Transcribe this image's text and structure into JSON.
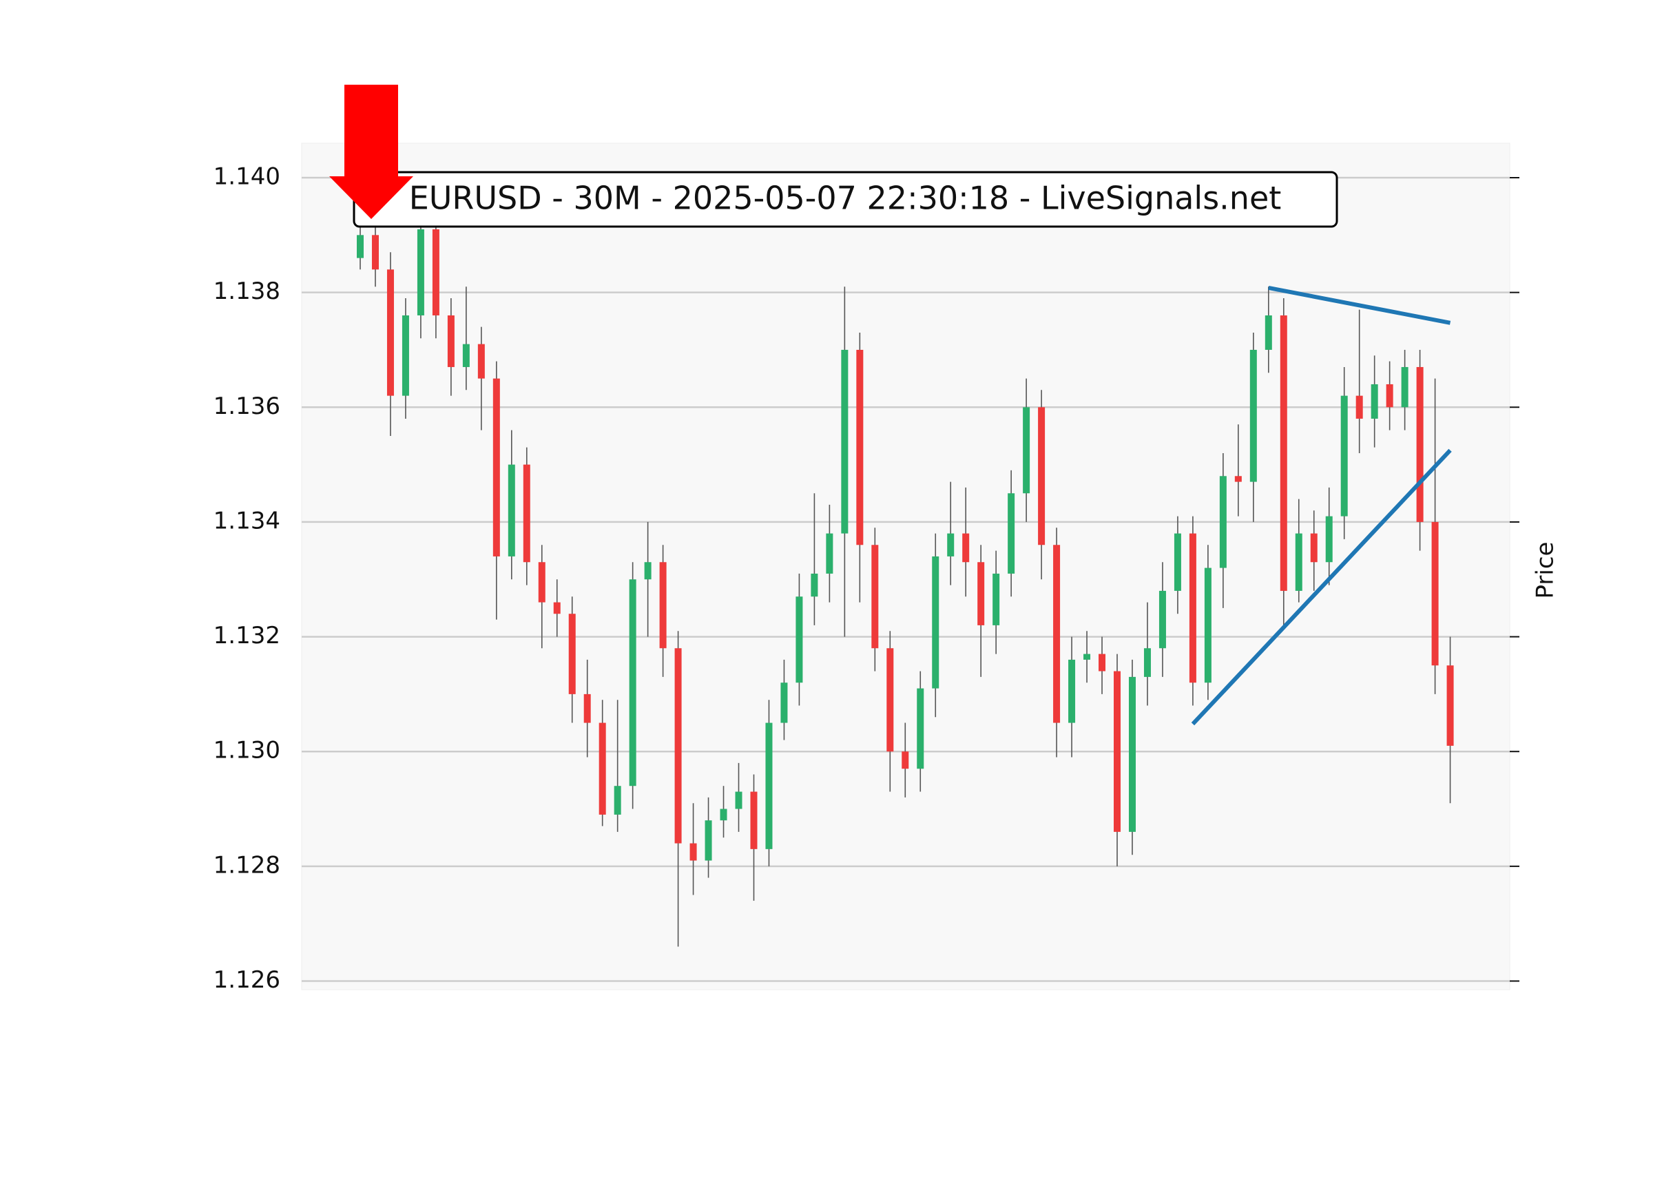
{
  "chart_data": {
    "type": "candlestick",
    "title": "EURUSD - 30M - 2025-05-07 22:30:18 - LiveSignals.net",
    "y_label": "Price",
    "ylim": [
      1.12585,
      1.1406
    ],
    "yticks": [
      1.126,
      1.128,
      {
        "value": 1.13,
        "label": "1.130"
      },
      1.132,
      1.134,
      1.136,
      1.138,
      {
        "value": 1.14,
        "label": "1.140"
      }
    ],
    "grid": true,
    "up_color": "#2bb06c",
    "down_color": "#ee3a3a",
    "wick_color": "#555555",
    "open": [
      1.1386,
      1.139,
      1.1384,
      1.1362,
      1.1376,
      1.1391,
      1.1376,
      1.1367,
      1.1371,
      1.1365,
      1.1334,
      1.135,
      1.1333,
      1.1326,
      1.1324,
      1.131,
      1.1305,
      1.1289,
      1.1294,
      1.133,
      1.1333,
      1.1318,
      1.1284,
      1.1281,
      1.1288,
      1.129,
      1.1293,
      1.1283,
      1.1305,
      1.1312,
      1.1327,
      1.1331,
      1.1338,
      1.137,
      1.1336,
      1.1318,
      1.13,
      1.1297,
      1.1311,
      1.1334,
      1.1338,
      1.1333,
      1.1322,
      1.1331,
      1.1345,
      1.136,
      1.1336,
      1.1305,
      1.1316,
      1.1317,
      1.1314,
      1.1286,
      1.1313,
      1.1318,
      1.1328,
      1.1338,
      1.1312,
      1.1332,
      1.1348,
      1.1347,
      1.137,
      1.1376,
      1.1328,
      1.1338,
      1.1333,
      1.1341,
      1.1362,
      1.1358,
      1.1364,
      1.136,
      1.1367,
      1.134,
      1.1315
    ],
    "high": [
      1.1395,
      1.1393,
      1.1387,
      1.1379,
      1.1394,
      1.1394,
      1.1379,
      1.1381,
      1.1374,
      1.1368,
      1.1356,
      1.1353,
      1.1336,
      1.133,
      1.1327,
      1.1316,
      1.1309,
      1.1309,
      1.1333,
      1.134,
      1.1336,
      1.1321,
      1.1291,
      1.1292,
      1.1294,
      1.1298,
      1.1296,
      1.1309,
      1.1316,
      1.1331,
      1.1345,
      1.1343,
      1.1381,
      1.1373,
      1.1339,
      1.1321,
      1.1305,
      1.1314,
      1.1338,
      1.1347,
      1.1346,
      1.1336,
      1.1335,
      1.1349,
      1.1365,
      1.1363,
      1.1339,
      1.132,
      1.1321,
      1.132,
      1.1317,
      1.1316,
      1.1326,
      1.1333,
      1.1341,
      1.1341,
      1.1336,
      1.1352,
      1.1357,
      1.1373,
      1.1381,
      1.1379,
      1.1344,
      1.1342,
      1.1346,
      1.1367,
      1.1377,
      1.1369,
      1.1368,
      1.137,
      1.137,
      1.1365,
      1.132
    ],
    "low": [
      1.1384,
      1.1381,
      1.1355,
      1.1358,
      1.1372,
      1.1372,
      1.1362,
      1.1363,
      1.1356,
      1.1323,
      1.133,
      1.1329,
      1.1318,
      1.132,
      1.1305,
      1.1299,
      1.1287,
      1.1286,
      1.129,
      1.132,
      1.1313,
      1.1266,
      1.1275,
      1.1278,
      1.1285,
      1.1286,
      1.1274,
      1.128,
      1.1302,
      1.1308,
      1.1322,
      1.1326,
      1.132,
      1.1326,
      1.1314,
      1.1293,
      1.1292,
      1.1293,
      1.1306,
      1.1329,
      1.1327,
      1.1313,
      1.1317,
      1.1327,
      1.134,
      1.133,
      1.1299,
      1.1299,
      1.1312,
      1.131,
      1.128,
      1.1282,
      1.1308,
      1.1313,
      1.1324,
      1.1308,
      1.1309,
      1.1325,
      1.1341,
      1.134,
      1.1366,
      1.1322,
      1.1326,
      1.1328,
      1.1329,
      1.1337,
      1.1352,
      1.1353,
      1.1356,
      1.1356,
      1.1335,
      1.131,
      1.1291
    ],
    "close": [
      1.139,
      1.1384,
      1.1362,
      1.1376,
      1.1391,
      1.1376,
      1.1367,
      1.1371,
      1.1365,
      1.1334,
      1.135,
      1.1333,
      1.1326,
      1.1324,
      1.131,
      1.1305,
      1.1289,
      1.1294,
      1.133,
      1.1333,
      1.1318,
      1.1284,
      1.1281,
      1.1288,
      1.129,
      1.1293,
      1.1283,
      1.1305,
      1.1312,
      1.1327,
      1.1331,
      1.1338,
      1.137,
      1.1336,
      1.1318,
      1.13,
      1.1297,
      1.1311,
      1.1334,
      1.1338,
      1.1333,
      1.1322,
      1.1331,
      1.1345,
      1.136,
      1.1336,
      1.1305,
      1.1316,
      1.1317,
      1.1314,
      1.1286,
      1.1313,
      1.1318,
      1.1328,
      1.1338,
      1.1312,
      1.1332,
      1.1348,
      1.1347,
      1.137,
      1.1376,
      1.1328,
      1.1338,
      1.1333,
      1.1341,
      1.1362,
      1.1358,
      1.1364,
      1.136,
      1.1367,
      1.134,
      1.1315,
      1.1301
    ],
    "trend_lines": [
      {
        "color": "#1f77b4",
        "x": [
          60,
          72
        ],
        "y": [
          1.13808,
          1.13747
        ]
      },
      {
        "color": "#1f77b4",
        "x": [
          55,
          72
        ],
        "y": [
          1.13048,
          1.13525
        ]
      }
    ]
  }
}
